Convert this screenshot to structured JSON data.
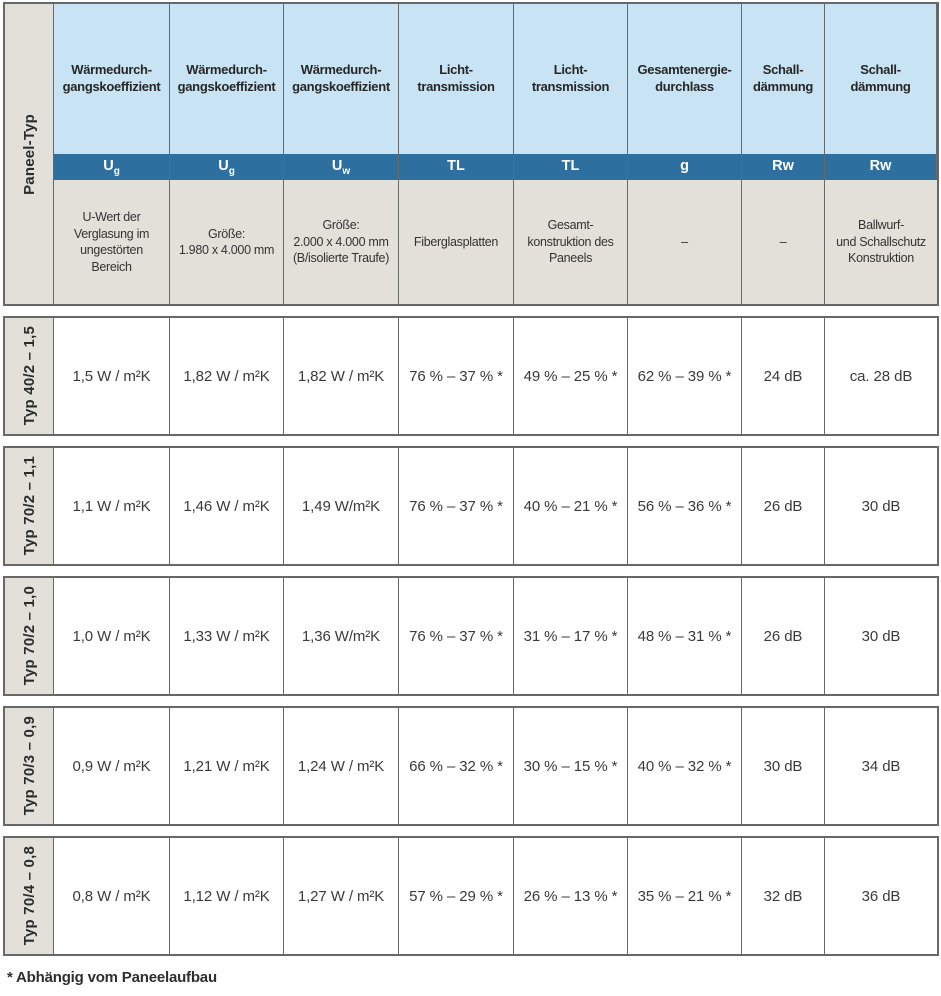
{
  "colors": {
    "header_light_blue": "#c8e3f4",
    "header_dark_blue": "#2d6f9e",
    "header_gray": "#e3e0da",
    "border_gray": "#686868"
  },
  "table": {
    "row_header_label": "Paneel-Typ",
    "columns": [
      {
        "title": "Wärmedurch-\ngangskoeffizient",
        "symbol": "U",
        "symbol_sub": "g",
        "description": "U-Wert der\nVerglasung im\nungestörten\nBereich"
      },
      {
        "title": "Wärmedurch-\ngangskoeffizient",
        "symbol": "U",
        "symbol_sub": "g",
        "description": "Größe:\n1.980 x 4.000 mm"
      },
      {
        "title": "Wärmedurch-\ngangskoeffizient",
        "symbol": "U",
        "symbol_sub": "w",
        "description": "Größe:\n2.000 x 4.000 mm\n(B/isolierte Traufe)"
      },
      {
        "title": "Licht-\ntransmission",
        "symbol": "TL",
        "symbol_sub": "",
        "description": "Fiberglasplatten"
      },
      {
        "title": "Licht-\ntransmission",
        "symbol": "TL",
        "symbol_sub": "",
        "description": "Gesamt-\nkonstruktion des\nPaneels"
      },
      {
        "title": "Gesamtenergie-\ndurchlass",
        "symbol": "g",
        "symbol_sub": "",
        "description": "–"
      },
      {
        "title": "Schall-\ndämmung",
        "symbol": "Rw",
        "symbol_sub": "",
        "description": "–"
      },
      {
        "title": "Schall-\ndämmung",
        "symbol": "Rw",
        "symbol_sub": "",
        "description": "Ballwurf-\nund Schallschutz\nKonstruktion"
      }
    ],
    "rows": [
      {
        "label": "Typ 40/2 – 1,5",
        "values": [
          "1,5 W / m²K",
          "1,82 W / m²K",
          "1,82 W / m²K",
          "76 % – 37 % *",
          "49 % – 25 % *",
          "62 % – 39 % *",
          "24 dB",
          "ca. 28 dB"
        ]
      },
      {
        "label": "Typ 70/2 – 1,1",
        "values": [
          "1,1 W / m²K",
          "1,46 W / m²K",
          "1,49 W/m²K",
          "76 % – 37 % *",
          "40 % – 21 % *",
          "56 % – 36 % *",
          "26 dB",
          "30 dB"
        ]
      },
      {
        "label": "Typ 70/2 – 1,0",
        "values": [
          "1,0 W / m²K",
          "1,33 W / m²K",
          "1,36 W/m²K",
          "76 % – 37 % *",
          "31 % – 17 % *",
          "48 % – 31 % *",
          "26 dB",
          "30 dB"
        ]
      },
      {
        "label": "Typ 70/3 – 0,9",
        "values": [
          "0,9 W / m²K",
          "1,21 W / m²K",
          "1,24 W / m²K",
          "66 % – 32 % *",
          "30 % – 15 % *",
          "40 % – 32 % *",
          "30 dB",
          "34 dB"
        ]
      },
      {
        "label": "Typ 70/4 – 0,8",
        "values": [
          "0,8 W / m²K",
          "1,12 W / m²K",
          "1,27 W / m²K",
          "57 % – 29 % *",
          "26 % – 13 % *",
          "35 % – 21 % *",
          "32 dB",
          "36 dB"
        ]
      }
    ],
    "footnote": "* Abhängig vom Paneelaufbau"
  }
}
